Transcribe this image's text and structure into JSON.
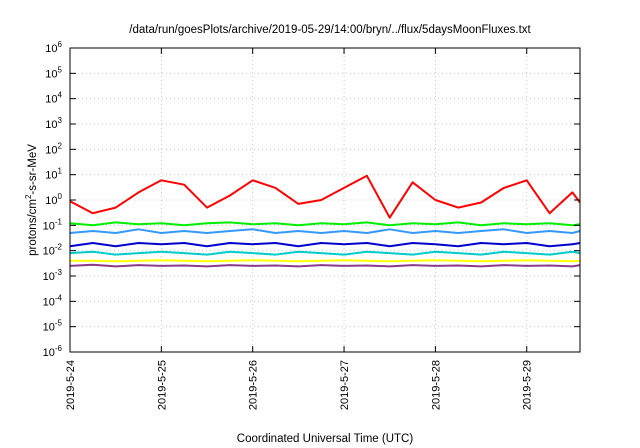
{
  "chart_data": {
    "type": "line",
    "title": "/data/run/goesPlots/archive/2019-05-29/14:00/bryn/../flux/5daysMoonFluxes.txt",
    "xlabel": "Coordinated Universal Time (UTC)",
    "ylabel": {
      "base": "protons/cm",
      "sup": "2",
      "rest": "-s-sr-MeV"
    },
    "x_ticks": [
      "2019-5-24",
      "2019-5-25",
      "2019-5-26",
      "2019-5-27",
      "2019-5-28",
      "2019-5-29"
    ],
    "x_range": [
      "2019-05-24 00:00",
      "2019-05-29 14:00"
    ],
    "y_scale": "log",
    "y_range": [
      1e-06,
      1000000.0
    ],
    "y_ticks": [
      {
        "exp": "-6",
        "value": 1e-06
      },
      {
        "exp": "-5",
        "value": 1e-05
      },
      {
        "exp": "-4",
        "value": 0.0001
      },
      {
        "exp": "-3",
        "value": 0.001
      },
      {
        "exp": "-2",
        "value": 0.01
      },
      {
        "exp": "-1",
        "value": 0.1
      },
      {
        "exp": "0",
        "value": 1
      },
      {
        "exp": "1",
        "value": 10
      },
      {
        "exp": "2",
        "value": 100
      },
      {
        "exp": "3",
        "value": 1000
      },
      {
        "exp": "4",
        "value": 10000
      },
      {
        "exp": "5",
        "value": 100000
      },
      {
        "exp": "6",
        "value": 1000000
      }
    ],
    "y_tick_base": "10",
    "grid": true,
    "x_days": [
      0,
      0.25,
      0.5,
      0.75,
      1,
      1.25,
      1.5,
      1.75,
      2,
      2.25,
      2.5,
      2.75,
      3,
      3.25,
      3.5,
      3.75,
      4,
      4.25,
      4.5,
      4.75,
      5,
      5.25,
      5.5,
      5.583
    ],
    "series": [
      {
        "color": "#ff0000",
        "values": [
          0.9,
          0.3,
          0.5,
          2.0,
          6.0,
          4.0,
          0.5,
          1.5,
          6.0,
          3.0,
          0.7,
          1.0,
          3.0,
          9.0,
          0.2,
          5.0,
          1.0,
          0.5,
          0.8,
          3.0,
          6.0,
          0.3,
          2.0,
          0.8
        ]
      },
      {
        "color": "#00ee00",
        "values": [
          0.12,
          0.1,
          0.13,
          0.11,
          0.12,
          0.1,
          0.12,
          0.13,
          0.11,
          0.12,
          0.1,
          0.12,
          0.11,
          0.13,
          0.1,
          0.12,
          0.11,
          0.13,
          0.1,
          0.12,
          0.11,
          0.12,
          0.1,
          0.11
        ]
      },
      {
        "color": "#3399ff",
        "values": [
          0.05,
          0.06,
          0.05,
          0.07,
          0.05,
          0.06,
          0.05,
          0.06,
          0.07,
          0.05,
          0.06,
          0.05,
          0.06,
          0.05,
          0.07,
          0.05,
          0.06,
          0.05,
          0.06,
          0.07,
          0.05,
          0.06,
          0.05,
          0.06
        ]
      },
      {
        "color": "#0000cc",
        "values": [
          0.015,
          0.02,
          0.015,
          0.02,
          0.018,
          0.02,
          0.015,
          0.02,
          0.018,
          0.02,
          0.015,
          0.02,
          0.018,
          0.02,
          0.015,
          0.02,
          0.018,
          0.015,
          0.02,
          0.018,
          0.02,
          0.015,
          0.018,
          0.02
        ]
      },
      {
        "color": "#00cccc",
        "values": [
          0.008,
          0.009,
          0.007,
          0.008,
          0.009,
          0.008,
          0.007,
          0.009,
          0.008,
          0.007,
          0.009,
          0.008,
          0.007,
          0.009,
          0.008,
          0.007,
          0.009,
          0.008,
          0.007,
          0.009,
          0.008,
          0.007,
          0.009,
          0.008
        ]
      },
      {
        "color": "#ffff00",
        "values": [
          0.004,
          0.004,
          0.0038,
          0.004,
          0.0042,
          0.004,
          0.0038,
          0.004,
          0.0042,
          0.004,
          0.0038,
          0.004,
          0.0042,
          0.004,
          0.0038,
          0.004,
          0.0042,
          0.004,
          0.0038,
          0.004,
          0.0042,
          0.004,
          0.0038,
          0.004
        ]
      },
      {
        "color": "#8b3a8b",
        "values": [
          0.0025,
          0.0028,
          0.0024,
          0.0027,
          0.0025,
          0.0026,
          0.0024,
          0.0027,
          0.0025,
          0.0026,
          0.0024,
          0.0027,
          0.0025,
          0.0026,
          0.0024,
          0.0027,
          0.0025,
          0.0026,
          0.0024,
          0.0027,
          0.0025,
          0.0026,
          0.0024,
          0.0027
        ]
      }
    ]
  }
}
